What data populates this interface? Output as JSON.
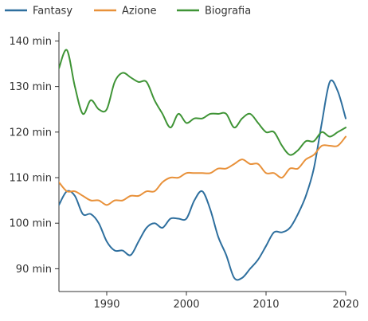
{
  "chart_data": {
    "type": "line",
    "legend_position": "top",
    "grid": false,
    "xlim": [
      1984,
      2020
    ],
    "ylim": [
      85,
      142
    ],
    "x_ticks": [
      1990,
      2000,
      2010,
      2020
    ],
    "y_ticks": [
      90,
      100,
      110,
      120,
      130,
      140
    ],
    "y_tick_labels": [
      "90 min",
      "100 min",
      "110 min",
      "120 min",
      "130 min",
      "140 min"
    ],
    "x_tick_labels": [
      "1990",
      "2000",
      "2010",
      "2020"
    ],
    "series": [
      {
        "name": "Fantasy",
        "color": "#2e6f9e",
        "x": [
          1984,
          1985,
          1986,
          1987,
          1988,
          1989,
          1990,
          1991,
          1992,
          1993,
          1994,
          1995,
          1996,
          1997,
          1998,
          1999,
          2000,
          2001,
          2002,
          2003,
          2004,
          2005,
          2006,
          2007,
          2008,
          2009,
          2010,
          2011,
          2012,
          2013,
          2014,
          2015,
          2016,
          2017,
          2018,
          2019,
          2020
        ],
        "values": [
          104,
          107,
          106,
          102,
          102,
          100,
          96,
          94,
          94,
          93,
          96,
          99,
          100,
          99,
          101,
          101,
          101,
          105,
          107,
          103,
          97,
          93,
          88,
          88,
          90,
          92,
          95,
          98,
          98,
          99,
          102,
          106,
          112,
          122,
          131,
          129,
          123
        ]
      },
      {
        "name": "Azione",
        "color": "#e8913a",
        "x": [
          1984,
          1985,
          1986,
          1987,
          1988,
          1989,
          1990,
          1991,
          1992,
          1993,
          1994,
          1995,
          1996,
          1997,
          1998,
          1999,
          2000,
          2001,
          2002,
          2003,
          2004,
          2005,
          2006,
          2007,
          2008,
          2009,
          2010,
          2011,
          2012,
          2013,
          2014,
          2015,
          2016,
          2017,
          2018,
          2019,
          2020
        ],
        "values": [
          109,
          107,
          107,
          106,
          105,
          105,
          104,
          105,
          105,
          106,
          106,
          107,
          107,
          109,
          110,
          110,
          111,
          111,
          111,
          111,
          112,
          112,
          113,
          114,
          113,
          113,
          111,
          111,
          110,
          112,
          112,
          114,
          115,
          117,
          117,
          117,
          119
        ]
      },
      {
        "name": "Biografia",
        "color": "#3f9436",
        "x": [
          1984,
          1985,
          1986,
          1987,
          1988,
          1989,
          1990,
          1991,
          1992,
          1993,
          1994,
          1995,
          1996,
          1997,
          1998,
          1999,
          2000,
          2001,
          2002,
          2003,
          2004,
          2005,
          2006,
          2007,
          2008,
          2009,
          2010,
          2011,
          2012,
          2013,
          2014,
          2015,
          2016,
          2017,
          2018,
          2019,
          2020
        ],
        "values": [
          134,
          138,
          130,
          124,
          127,
          125,
          125,
          131,
          133,
          132,
          131,
          131,
          127,
          124,
          121,
          124,
          122,
          123,
          123,
          124,
          124,
          124,
          121,
          123,
          124,
          122,
          120,
          120,
          117,
          115,
          116,
          118,
          118,
          120,
          119,
          120,
          121
        ]
      }
    ]
  }
}
